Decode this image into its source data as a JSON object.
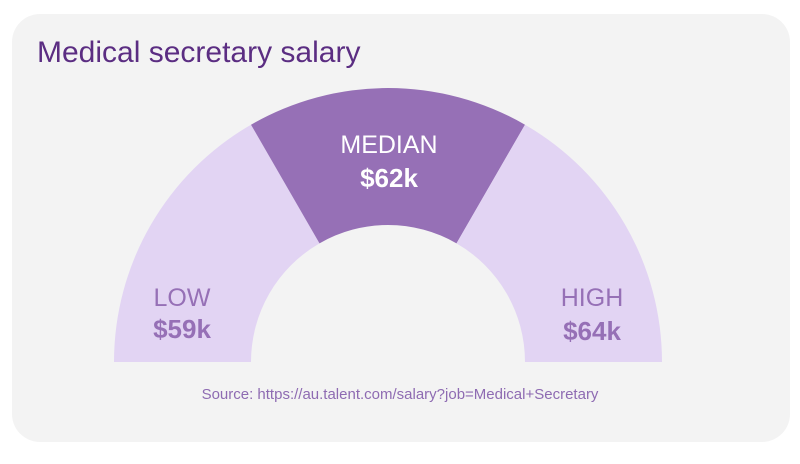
{
  "title": "Medical secretary salary",
  "source": "Source: https://au.talent.com/salary?job=Medical+Secretary",
  "colors": {
    "background": "#f3f3f3",
    "title": "#5b2d82",
    "segment_light": "#e2d4f3",
    "segment_dark": "#9670b6",
    "label_on_light": "#9670b6",
    "label_on_dark": "#ffffff",
    "source": "#8e6bb2"
  },
  "chart_data": {
    "type": "gauge",
    "title": "Medical secretary salary",
    "segments": [
      {
        "name": "LOW",
        "value_label": "$59k",
        "value": 59000,
        "highlight": false
      },
      {
        "name": "MEDIAN",
        "value_label": "$62k",
        "value": 62000,
        "highlight": true
      },
      {
        "name": "HIGH",
        "value_label": "$64k",
        "value": 64000,
        "highlight": false
      }
    ]
  }
}
